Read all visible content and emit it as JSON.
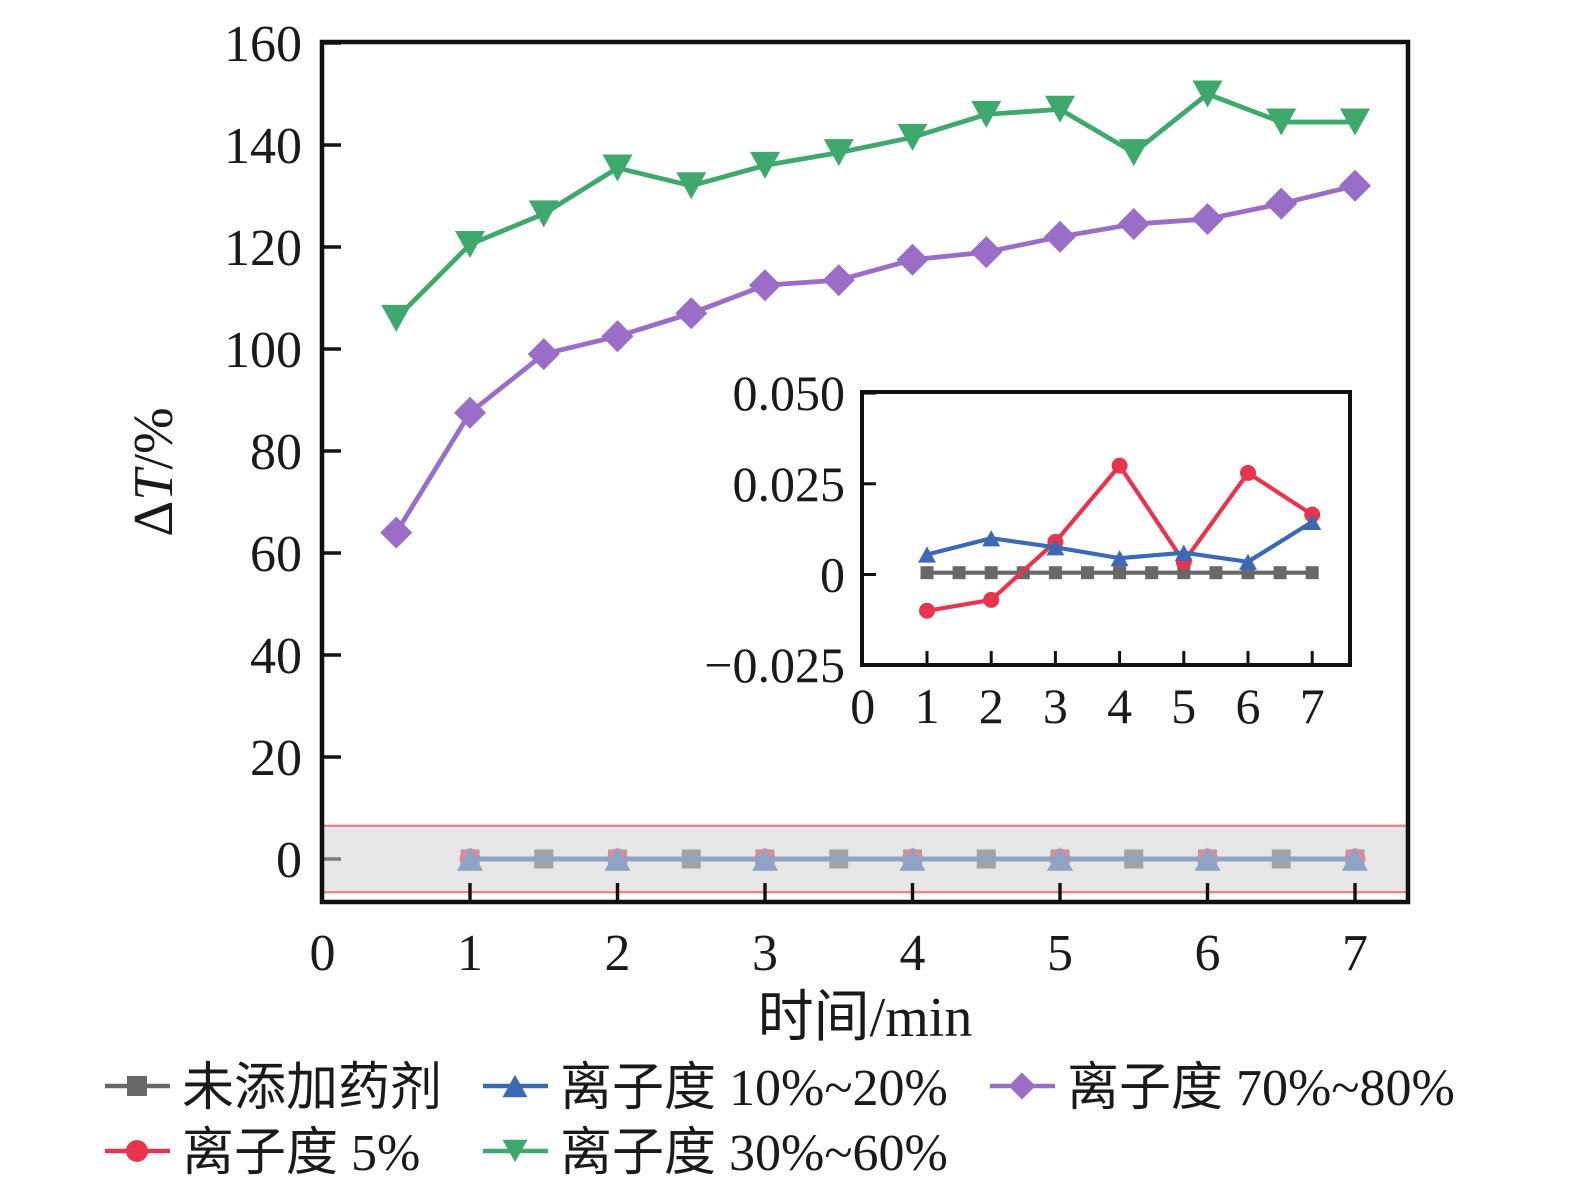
{
  "colors": {
    "gray": "#686868",
    "red": "#e8354e",
    "blue": "#3b69b4",
    "green": "#3fa86d",
    "purple": "#9a6ec6",
    "frame": "#111111",
    "band_fill": "#d3d3d3",
    "band_border": "#e38a8a",
    "text": "#1a1a1a"
  },
  "labels": {
    "xlabel": "时间/min",
    "ylabel_delta": "Δ",
    "ylabel_T": "T",
    "ylabel_suffix": "/%"
  },
  "legend": {
    "rows": [
      [
        {
          "label": "未添加药剂",
          "color_key": "gray",
          "marker": "square"
        },
        {
          "label": "离子度 10%~20%",
          "color_key": "blue",
          "marker": "triangle-up"
        },
        {
          "label": "离子度 70%~80%",
          "color_key": "purple",
          "marker": "diamond"
        }
      ],
      [
        {
          "label": "离子度 5%",
          "color_key": "red",
          "marker": "circle"
        },
        {
          "label": "离子度 30%~60%",
          "color_key": "green",
          "marker": "triangle-down"
        }
      ]
    ]
  },
  "chart_data": [
    {
      "id": "main",
      "type": "line",
      "title": "",
      "xlabel": "时间/min",
      "ylabel": "ΔT/%",
      "xlim": [
        0,
        7.36
      ],
      "ylim": [
        -8.4,
        160.2
      ],
      "grid": false,
      "xticks": [
        0,
        1,
        2,
        3,
        4,
        5,
        6,
        7
      ],
      "xtick_labels": [
        "0",
        "1",
        "2",
        "3",
        "4",
        "5",
        "6",
        "7"
      ],
      "yticks": [
        0,
        20,
        40,
        60,
        80,
        100,
        120,
        140,
        160
      ],
      "ytick_labels": [
        "0",
        "20",
        "40",
        "60",
        "80",
        "100",
        "120",
        "140",
        "160"
      ],
      "band": {
        "y_min": -6.5,
        "y_max": 6.5
      },
      "series": [
        {
          "name": "未添加药剂",
          "color_key": "gray",
          "marker": "square",
          "x": [
            1,
            1.5,
            2,
            2.5,
            3,
            3.5,
            4,
            4.5,
            5,
            5.5,
            6,
            6.5,
            7
          ],
          "y": [
            0,
            0,
            0,
            0,
            0,
            0,
            0,
            0,
            0,
            0,
            0,
            0,
            0
          ]
        },
        {
          "name": "离子度 5%",
          "color_key": "red",
          "marker": "circle",
          "x": [
            1,
            2,
            3,
            4,
            5,
            6,
            7
          ],
          "y": [
            0,
            0,
            0,
            0,
            0,
            0,
            0
          ]
        },
        {
          "name": "离子度 10%~20%",
          "color_key": "blue",
          "marker": "triangle-up",
          "x": [
            1,
            2,
            3,
            4,
            5,
            6,
            7
          ],
          "y": [
            0,
            0,
            0,
            0,
            0,
            0,
            0
          ]
        },
        {
          "name": "离子度 30%~60%",
          "color_key": "green",
          "marker": "triangle-down",
          "x": [
            0.5,
            1,
            1.5,
            2,
            2.5,
            3,
            3.5,
            4,
            4.5,
            5,
            5.5,
            6,
            6.5,
            7
          ],
          "y": [
            106,
            120.5,
            126.5,
            135.5,
            132,
            136,
            138.5,
            141.5,
            146,
            147,
            138.5,
            150,
            144.5,
            144.5
          ]
        },
        {
          "name": "离子度 70%~80%",
          "color_key": "purple",
          "marker": "diamond",
          "x": [
            0.5,
            1,
            1.5,
            2,
            2.5,
            3,
            3.5,
            4,
            4.5,
            5,
            5.5,
            6,
            6.5,
            7
          ],
          "y": [
            64,
            87.5,
            99,
            102.5,
            107,
            112.5,
            113.5,
            117.5,
            119,
            122,
            124.5,
            125.5,
            128.5,
            132
          ]
        }
      ]
    },
    {
      "id": "inset",
      "type": "line",
      "title": "",
      "xlabel": "",
      "ylabel": "",
      "xlim": [
        0,
        7.59
      ],
      "ylim": [
        -0.025,
        0.05
      ],
      "grid": false,
      "xticks": [
        0,
        1,
        2,
        3,
        4,
        5,
        6,
        7
      ],
      "xtick_labels": [
        "0",
        "1",
        "2",
        "3",
        "4",
        "5",
        "6",
        "7"
      ],
      "yticks": [
        -0.025,
        0,
        0.025,
        0.05
      ],
      "ytick_labels": [
        "−0.025",
        "0",
        "0.025",
        "0.050"
      ],
      "series": [
        {
          "name": "未添加药剂",
          "color_key": "gray",
          "marker": "square",
          "x": [
            1,
            1.5,
            2,
            2.5,
            3,
            3.5,
            4,
            4.5,
            5,
            5.5,
            6,
            6.5,
            7
          ],
          "y": [
            0.0005,
            0.0005,
            0.0005,
            0.0005,
            0.0005,
            0.0005,
            0.0005,
            0.0005,
            0.0005,
            0.0005,
            0.0005,
            0.0005,
            0.0005
          ]
        },
        {
          "name": "离子度 5%",
          "color_key": "red",
          "marker": "circle",
          "x": [
            1,
            2,
            3,
            4,
            5,
            6,
            7
          ],
          "y": [
            -0.01,
            -0.007,
            0.009,
            0.03,
            0.0035,
            0.028,
            0.0165
          ]
        },
        {
          "name": "离子度 10%~20%",
          "color_key": "blue",
          "marker": "triangle-up",
          "x": [
            1,
            2,
            3,
            4,
            5,
            6,
            7
          ],
          "y": [
            0.0055,
            0.01,
            0.0075,
            0.0045,
            0.006,
            0.0035,
            0.0145
          ]
        }
      ]
    }
  ]
}
